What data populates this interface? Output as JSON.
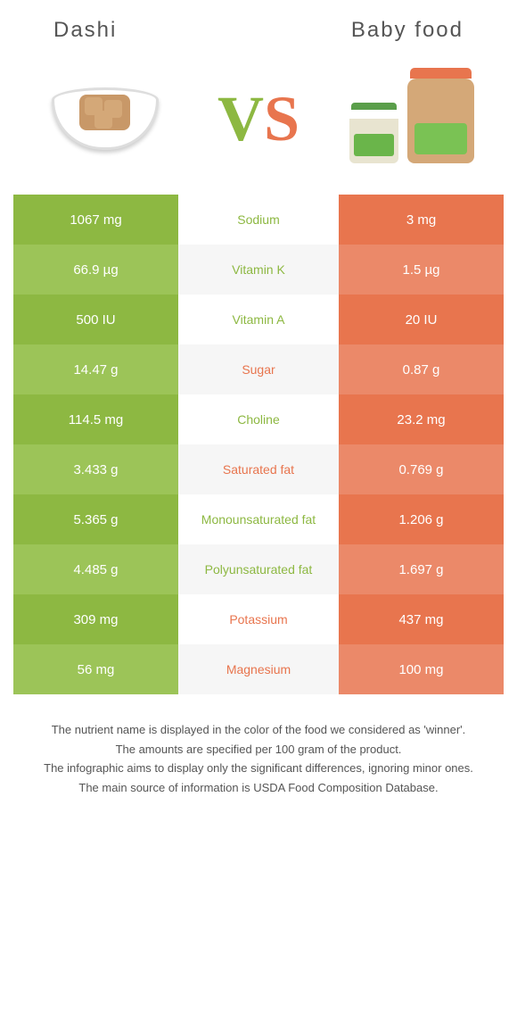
{
  "header": {
    "left_title": "Dashi",
    "right_title": "Baby food"
  },
  "vs": {
    "v": "V",
    "s": "S"
  },
  "colors": {
    "green": "#8db842",
    "green_alt": "#9cc458",
    "orange": "#e8754e",
    "orange_alt": "#eb8969"
  },
  "rows": [
    {
      "left": "1067 mg",
      "label": "Sodium",
      "right": "3 mg",
      "winner": "left"
    },
    {
      "left": "66.9 µg",
      "label": "Vitamin K",
      "right": "1.5 µg",
      "winner": "left"
    },
    {
      "left": "500 IU",
      "label": "Vitamin A",
      "right": "20 IU",
      "winner": "left"
    },
    {
      "left": "14.47 g",
      "label": "Sugar",
      "right": "0.87 g",
      "winner": "right"
    },
    {
      "left": "114.5 mg",
      "label": "Choline",
      "right": "23.2 mg",
      "winner": "left"
    },
    {
      "left": "3.433 g",
      "label": "Saturated fat",
      "right": "0.769 g",
      "winner": "right"
    },
    {
      "left": "5.365 g",
      "label": "Monounsaturated fat",
      "right": "1.206 g",
      "winner": "left"
    },
    {
      "left": "4.485 g",
      "label": "Polyunsaturated fat",
      "right": "1.697 g",
      "winner": "left"
    },
    {
      "left": "309 mg",
      "label": "Potassium",
      "right": "437 mg",
      "winner": "right"
    },
    {
      "left": "56 mg",
      "label": "Magnesium",
      "right": "100 mg",
      "winner": "right"
    }
  ],
  "footer": {
    "l1": "The nutrient name is displayed in the color of the food we considered as 'winner'.",
    "l2": "The amounts are specified per 100 gram of the product.",
    "l3": "The infographic aims to display only the significant differences, ignoring minor ones.",
    "l4": "The main source of information is USDA Food Composition Database."
  }
}
